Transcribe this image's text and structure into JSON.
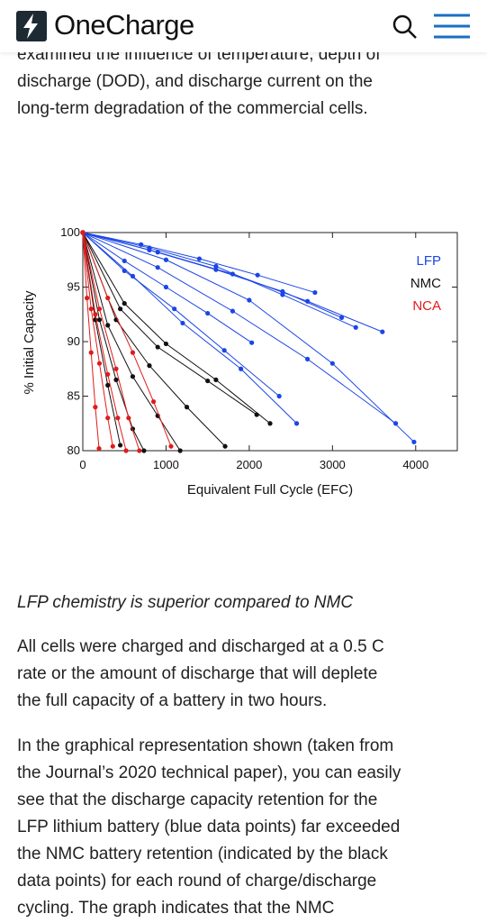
{
  "header": {
    "logo": "OneCharge"
  },
  "content": {
    "intro_cut": "examined the influence of temperature, depth of",
    "intro": [
      "discharge (DOD), and discharge current on the",
      "long-term degradation of the commercial cells."
    ],
    "chart": {
      "type": "line",
      "xlabel": "Equivalent Full Cycle (EFC)",
      "ylabel": "% Initial Capacity",
      "xlim": [
        0,
        4500
      ],
      "ylim": [
        80,
        100
      ],
      "xticks": [
        0,
        1000,
        2000,
        3000,
        4000
      ],
      "yticks": [
        80,
        85,
        90,
        95,
        100
      ],
      "legend": "upper right",
      "series": [
        {
          "name": "LFP",
          "color": "#1b45e6",
          "lines": [
            {
              "x": [
                0,
                700,
                1400,
                2100,
                2790
              ],
              "values": [
                100,
                98.9,
                97.6,
                96.1,
                94.5
              ]
            },
            {
              "x": [
                0,
                900,
                1800,
                2700,
                3600
              ],
              "values": [
                100,
                98.2,
                96.2,
                93.7,
                90.9
              ]
            },
            {
              "x": [
                0,
                1000,
                2000,
                3000,
                3980
              ],
              "values": [
                100,
                97.5,
                93.8,
                88.0,
                80.8
              ]
            },
            {
              "x": [
                0,
                800,
                1600,
                2400,
                3280
              ],
              "values": [
                100,
                98.6,
                96.9,
                94.3,
                91.3
              ]
            },
            {
              "x": [
                0,
                800,
                1600,
                2400,
                3110
              ],
              "values": [
                100,
                98.4,
                96.6,
                94.6,
                92.2
              ]
            },
            {
              "x": [
                0,
                900,
                1800,
                2700,
                3760
              ],
              "values": [
                100,
                96.8,
                92.8,
                88.4,
                82.5
              ]
            },
            {
              "x": [
                0,
                600,
                1200,
                1900,
                2570
              ],
              "values": [
                100,
                96.0,
                91.7,
                87.5,
                82.5
              ]
            },
            {
              "x": [
                0,
                500,
                1100,
                1700,
                2360
              ],
              "values": [
                100,
                96.5,
                93.0,
                89.2,
                85.0
              ]
            },
            {
              "x": [
                0,
                500,
                1000,
                1500,
                2030
              ],
              "values": [
                100,
                97.4,
                95.0,
                92.6,
                89.9
              ]
            }
          ]
        },
        {
          "name": "NMC",
          "color": "#111111",
          "lines": [
            {
              "x": [
                0,
                500,
                1000,
                1600,
                2250
              ],
              "values": [
                100,
                93.5,
                89.8,
                86.5,
                82.5
              ]
            },
            {
              "x": [
                0,
                450,
                900,
                1500,
                2090
              ],
              "values": [
                100,
                93.0,
                89.5,
                86.4,
                83.3
              ]
            },
            {
              "x": [
                0,
                400,
                800,
                1250,
                1710
              ],
              "values": [
                100,
                92.0,
                87.8,
                84.0,
                80.4
              ]
            },
            {
              "x": [
                0,
                300,
                600,
                900,
                1170
              ],
              "values": [
                100,
                91.5,
                86.8,
                83.2,
                80.0
              ]
            },
            {
              "x": [
                0,
                200,
                400,
                600,
                735
              ],
              "values": [
                100,
                92.0,
                86.5,
                82.0,
                80.0
              ]
            },
            {
              "x": [
                0,
                150,
                300,
                450
              ],
              "values": [
                100,
                92,
                86,
                80.5
              ]
            }
          ]
        },
        {
          "name": "NCA",
          "color": "#e01b1b",
          "lines": [
            {
              "x": [
                0,
                200,
                400,
                550,
                680
              ],
              "values": [
                100,
                93,
                87.5,
                83,
                80
              ]
            },
            {
              "x": [
                0,
                150,
                300,
                420,
                520
              ],
              "values": [
                100,
                92.5,
                87,
                83,
                80
              ]
            },
            {
              "x": [
                0,
                100,
                200,
                300,
                360
              ],
              "values": [
                100,
                93,
                88,
                83,
                80.4
              ]
            },
            {
              "x": [
                0,
                50,
                100,
                150,
                195
              ],
              "values": [
                100,
                94,
                89,
                84,
                80.2
              ]
            },
            {
              "x": [
                0,
                300,
                600,
                850,
                1060
              ],
              "values": [
                100,
                94,
                89,
                84.5,
                80.4
              ]
            }
          ]
        }
      ]
    },
    "caption": "LFP chemistry is superior compared to NMC",
    "paragraphs": [
      [
        "All cells were charged and discharged at a 0.5 C",
        "rate or the amount of discharge that will deplete",
        "the full capacity of a battery in two hours."
      ],
      [
        "In the graphical representation shown (taken from",
        "the Journal’s 2020 technical paper), you can easily",
        "see that the discharge capacity retention for the",
        "LFP lithium battery (blue data points) far exceeded",
        "the NMC battery retention (indicated by the black",
        "data points) for each round of charge/discharge",
        "cycling. The graph indicates that the NMC"
      ]
    ]
  }
}
